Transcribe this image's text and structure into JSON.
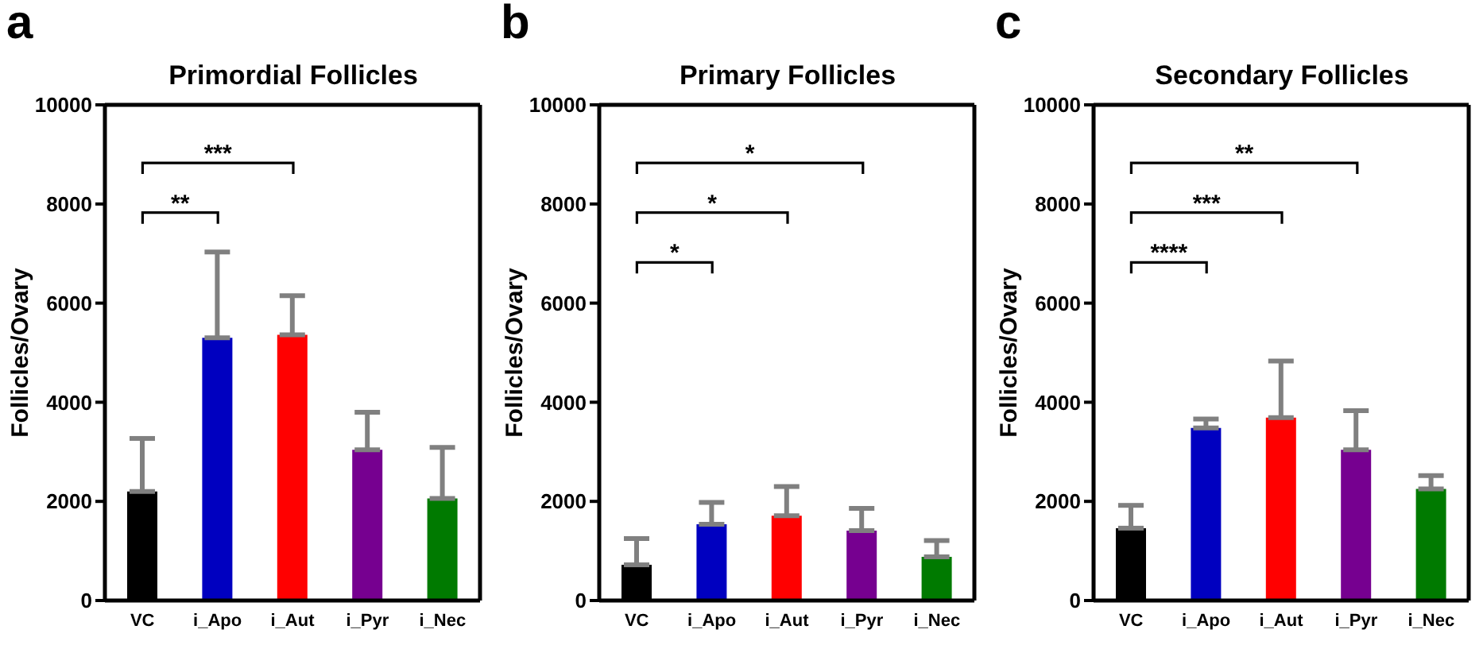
{
  "chart_data": [
    {
      "type": "bar",
      "title": "Primordial Follicles",
      "ylabel": "Follicles/Ovary",
      "categories": [
        "VC",
        "i_Apo",
        "i_Aut",
        "i_Pyr",
        "i_Nec"
      ],
      "values": [
        2200,
        5300,
        5360,
        3040,
        2060
      ],
      "errors": [
        [
          2200,
          3270
        ],
        [
          5300,
          7030
        ],
        [
          5360,
          6150
        ],
        [
          3040,
          3800
        ],
        [
          2060,
          3090
        ]
      ],
      "colors": [
        "#000000",
        "#0000c0",
        "#ff0000",
        "#760090",
        "#007a00"
      ],
      "ylim": [
        0,
        10000
      ],
      "yticks": [
        0,
        2000,
        4000,
        6000,
        8000,
        10000
      ],
      "grid": false,
      "legend": false,
      "annotations": [
        "a",
        "**",
        "***"
      ]
    },
    {
      "type": "bar",
      "title": "Primary Follicles",
      "ylabel": "Follicles/Ovary",
      "categories": [
        "VC",
        "i_Apo",
        "i_Aut",
        "i_Pyr",
        "i_Nec"
      ],
      "values": [
        720,
        1540,
        1710,
        1410,
        880
      ],
      "errors": [
        [
          720,
          1250
        ],
        [
          1540,
          1980
        ],
        [
          1710,
          2300
        ],
        [
          1410,
          1860
        ],
        [
          880,
          1210
        ]
      ],
      "colors": [
        "#000000",
        "#0000c0",
        "#ff0000",
        "#760090",
        "#007a00"
      ],
      "ylim": [
        0,
        10000
      ],
      "yticks": [
        0,
        2000,
        4000,
        6000,
        8000,
        10000
      ],
      "grid": false,
      "legend": false,
      "annotations": [
        "b",
        "*",
        "*",
        "*"
      ]
    },
    {
      "type": "bar",
      "title": "Secondary Follicles",
      "ylabel": "Follicles/Ovary",
      "categories": [
        "VC",
        "i_Apo",
        "i_Aut",
        "i_Pyr",
        "i_Nec"
      ],
      "values": [
        1460,
        3480,
        3690,
        3040,
        2250
      ],
      "errors": [
        [
          1460,
          1920
        ],
        [
          3480,
          3660
        ],
        [
          3690,
          4830
        ],
        [
          3040,
          3830
        ],
        [
          2250,
          2520
        ]
      ],
      "colors": [
        "#000000",
        "#0000c0",
        "#ff0000",
        "#760090",
        "#007a00"
      ],
      "ylim": [
        0,
        10000
      ],
      "yticks": [
        0,
        2000,
        4000,
        6000,
        8000,
        10000
      ],
      "grid": false,
      "legend": false,
      "annotations": [
        "c",
        "****",
        "***",
        "**"
      ]
    }
  ]
}
